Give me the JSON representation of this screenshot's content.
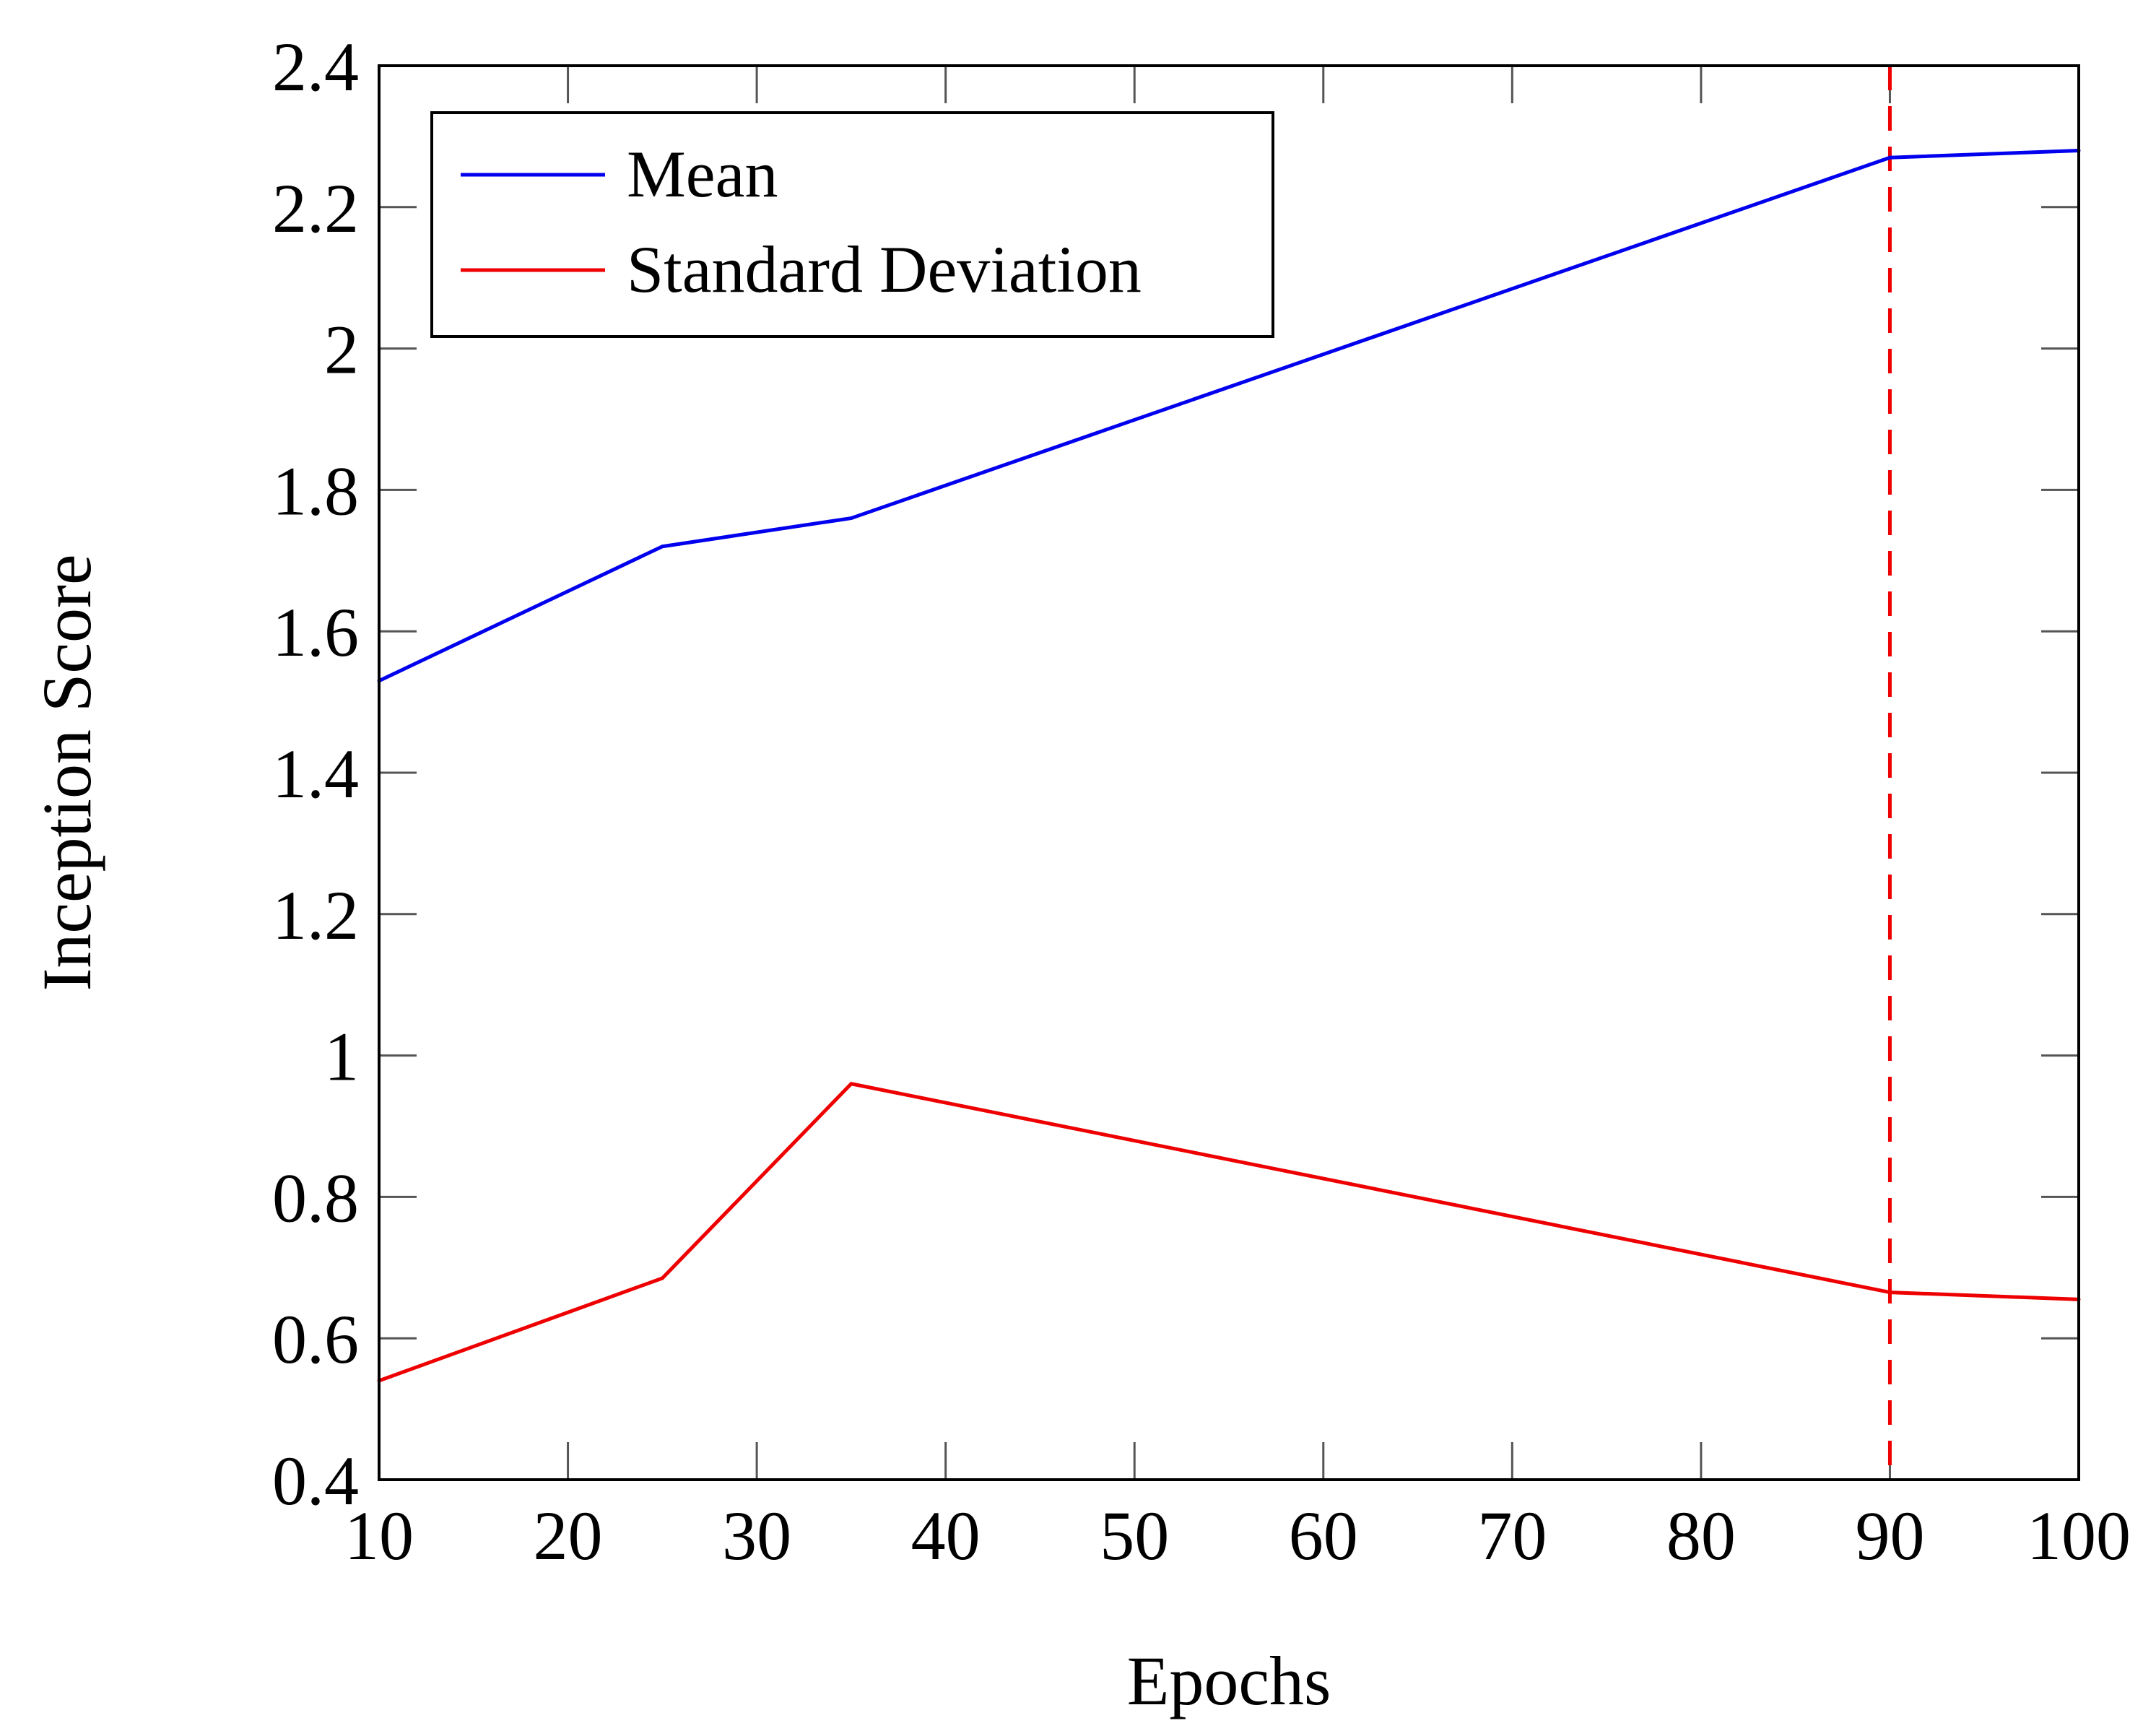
{
  "chart_data": {
    "type": "line",
    "title": "",
    "xlabel": "Epochs",
    "ylabel": "Inception Score",
    "xlim": [
      10,
      100
    ],
    "ylim": [
      0.4,
      2.4
    ],
    "x_ticks": [
      10,
      20,
      30,
      40,
      50,
      60,
      70,
      80,
      90,
      100
    ],
    "x_tick_labels": [
      "10",
      "20",
      "30",
      "40",
      "50",
      "60",
      "70",
      "80",
      "90",
      "100"
    ],
    "y_ticks": [
      0.4,
      0.6,
      0.8,
      1.0,
      1.2,
      1.4,
      1.6,
      1.8,
      2.0,
      2.2,
      2.4
    ],
    "y_tick_labels": [
      "0.4",
      "0.6",
      "0.8",
      "1",
      "1.2",
      "1.4",
      "1.6",
      "1.8",
      "2",
      "2.2",
      "2.4"
    ],
    "grid": false,
    "legend_position": "top-left",
    "series": [
      {
        "name": "Mean",
        "color": "#0000ee",
        "x": [
          10,
          25,
          35,
          90,
          100
        ],
        "values": [
          1.53,
          1.72,
          1.76,
          2.27,
          2.28
        ]
      },
      {
        "name": "Standard Deviation",
        "color": "#ee0000",
        "x": [
          10,
          25,
          35,
          90,
          100
        ],
        "values": [
          0.54,
          0.685,
          0.96,
          0.665,
          0.655
        ]
      }
    ],
    "reference_lines": [
      {
        "axis": "x",
        "value": 90,
        "color": "#ee0000",
        "style": "dashed"
      }
    ]
  }
}
